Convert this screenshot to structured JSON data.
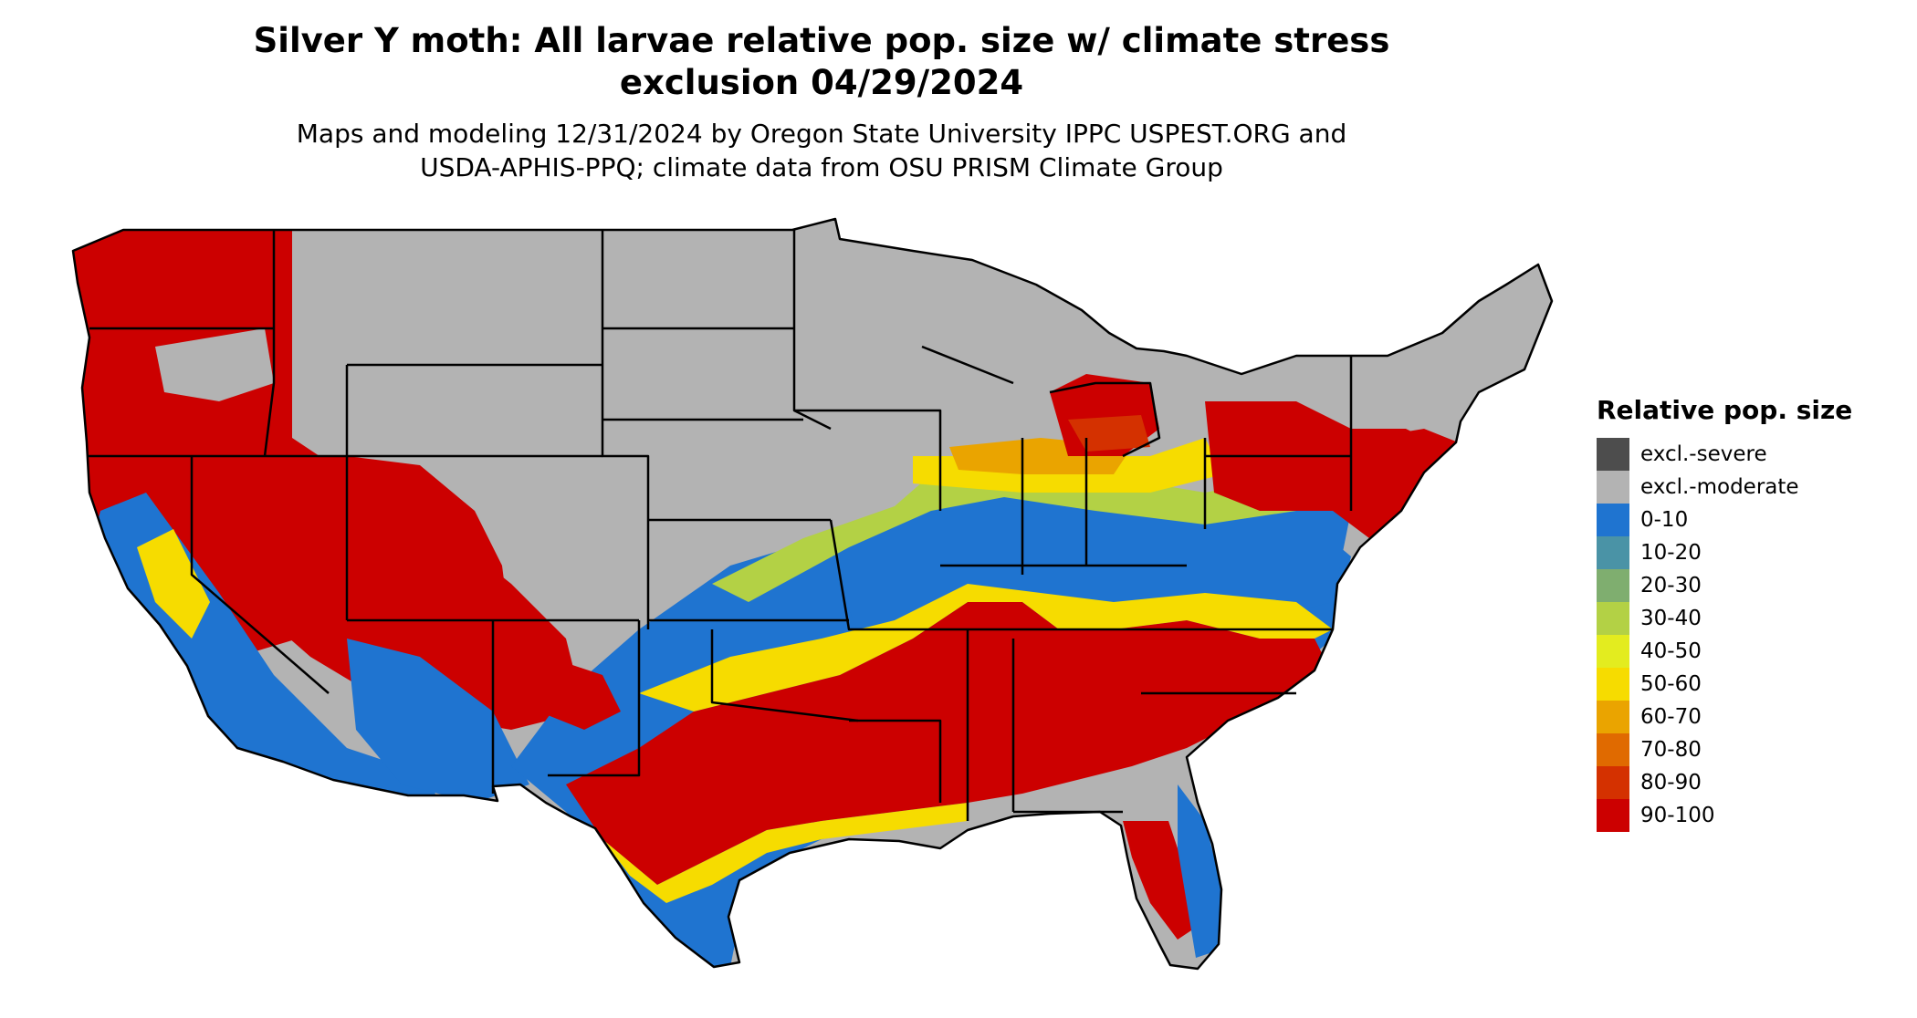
{
  "title_line1": "Silver Y moth: All larvae relative pop. size w/ climate stress",
  "title_line2": "exclusion 04/29/2024",
  "subtitle_line1": "Maps and modeling 12/31/2024 by Oregon State University IPPC USPEST.ORG and",
  "subtitle_line2": "USDA-APHIS-PPQ; climate data from OSU PRISM Climate Group",
  "legend": {
    "title": "Relative pop. size",
    "items": [
      {
        "label": "excl.-severe",
        "color": "#4d4d4d"
      },
      {
        "label": "excl.-moderate",
        "color": "#b3b3b3"
      },
      {
        "label": "0-10",
        "color": "#1f74d0"
      },
      {
        "label": "10-20",
        "color": "#4a93a6"
      },
      {
        "label": "20-30",
        "color": "#7fae6f"
      },
      {
        "label": "30-40",
        "color": "#b3d145"
      },
      {
        "label": "40-50",
        "color": "#e3ec1f"
      },
      {
        "label": "50-60",
        "color": "#f6dc00"
      },
      {
        "label": "60-70",
        "color": "#eaa400"
      },
      {
        "label": "70-80",
        "color": "#e06a00"
      },
      {
        "label": "80-90",
        "color": "#d43100"
      },
      {
        "label": "90-100",
        "color": "#cc0000"
      }
    ]
  }
}
